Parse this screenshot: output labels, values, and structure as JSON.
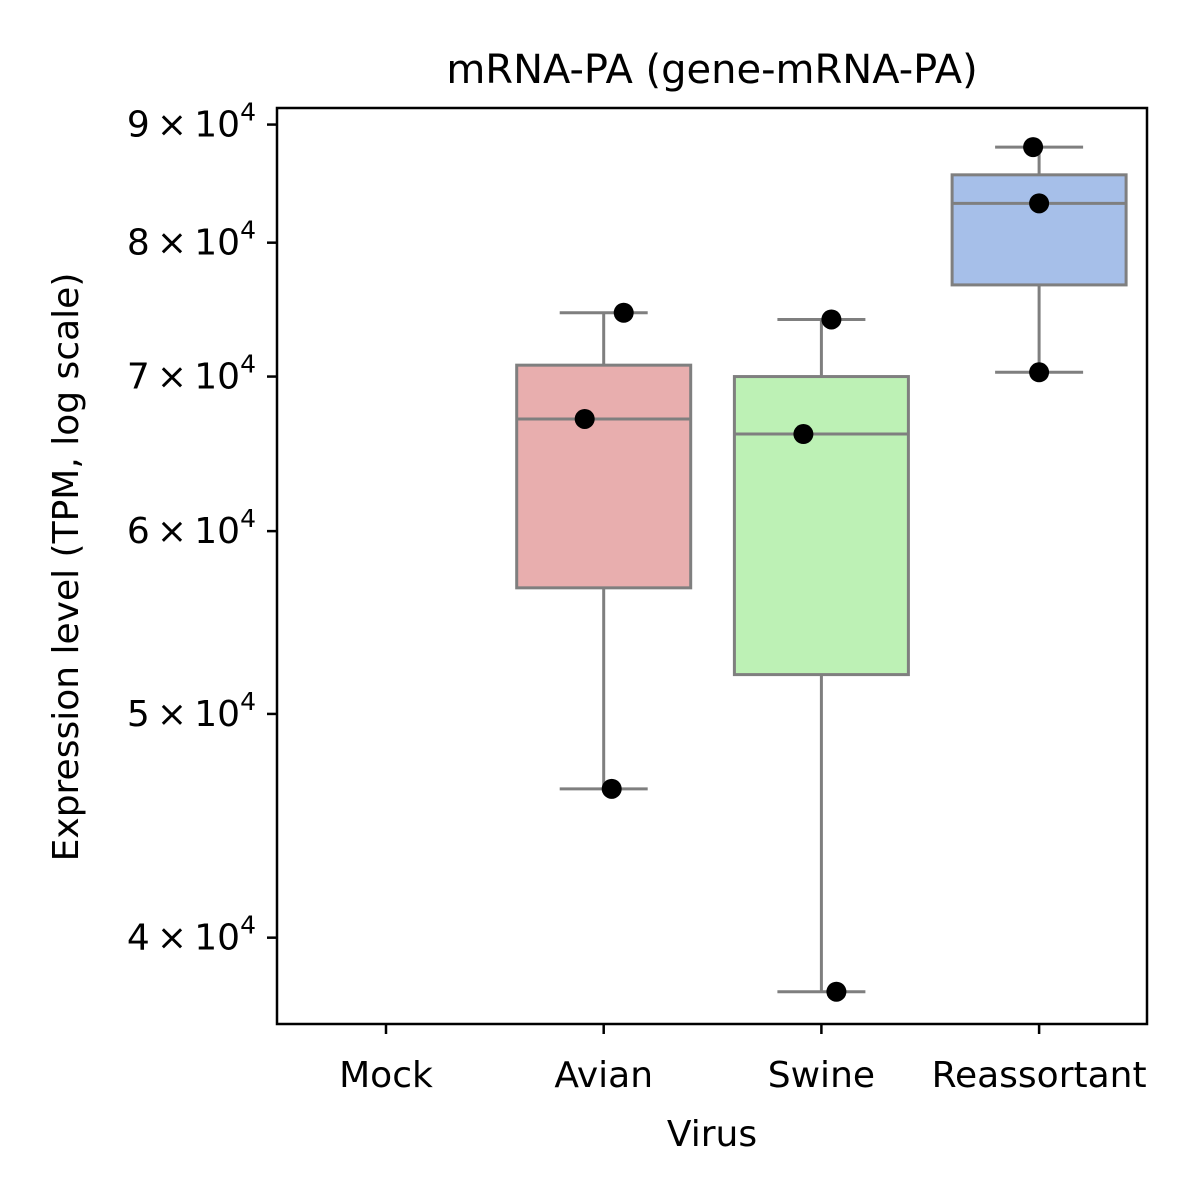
{
  "chart_data": {
    "type": "box",
    "title": "mRNA-PA (gene-mRNA-PA)",
    "xlabel": "Virus",
    "ylabel": "Expression level (TPM, log scale)",
    "y_scale": "log",
    "ylim": [
      36700,
      91500
    ],
    "yticks": [
      {
        "value": 40000,
        "mantissa": "4",
        "base": "10",
        "exponent": "4"
      },
      {
        "value": 50000,
        "mantissa": "5",
        "base": "10",
        "exponent": "4"
      },
      {
        "value": 60000,
        "mantissa": "6",
        "base": "10",
        "exponent": "4"
      },
      {
        "value": 70000,
        "mantissa": "7",
        "base": "10",
        "exponent": "4"
      },
      {
        "value": 80000,
        "mantissa": "8",
        "base": "10",
        "exponent": "4"
      },
      {
        "value": 90000,
        "mantissa": "9",
        "base": "10",
        "exponent": "4"
      }
    ],
    "times_symbol": "×",
    "categories": [
      "Mock",
      "Avian",
      "Swine",
      "Reassortant"
    ],
    "boxes": [
      {
        "category": "Mock",
        "color": null,
        "q1": null,
        "median": null,
        "q3": null,
        "whisker_low": null,
        "whisker_high": null,
        "points": []
      },
      {
        "category": "Avian",
        "color": "#e8aeae",
        "q1": 56700,
        "median": 67100,
        "q3": 70800,
        "whisker_low": 46400,
        "whisker_high": 74600,
        "points": [
          74600,
          67100,
          46400
        ]
      },
      {
        "category": "Swine",
        "color": "#bdf1b5",
        "q1": 52000,
        "median": 66100,
        "q3": 70000,
        "whisker_low": 37900,
        "whisker_high": 74100,
        "points": [
          74100,
          66100,
          37900
        ]
      },
      {
        "category": "Reassortant",
        "color": "#a6bfe9",
        "q1": 76700,
        "median": 83200,
        "q3": 85600,
        "whisker_low": 70300,
        "whisker_high": 88000,
        "points": [
          88000,
          83200,
          70300
        ]
      }
    ],
    "style": {
      "box_edge_color": "#7f7f7f",
      "point_color": "#000000",
      "axis_color": "#000000",
      "grid": false,
      "legend": "none"
    }
  }
}
